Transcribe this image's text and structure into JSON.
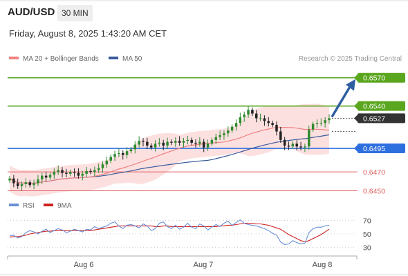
{
  "header": {
    "symbol": "AUD/USD",
    "timeframe": "30 MIN",
    "datetime": "Friday, August 8, 2025 1:43:20 AM CET"
  },
  "legend": {
    "ma20_label": "MA 20 + Bollinger Bands",
    "ma50_label": "MA 50",
    "credit": "Research © 2025 Trading Central",
    "rsi_label": "RSI",
    "rsi_ma_label": "9MA"
  },
  "colors": {
    "ma20": "#f08080",
    "ma50": "#3a5a9a",
    "band": "#fbd6d6",
    "green": "#5aa61e",
    "blue": "#2e6fe0",
    "red": "#e06060",
    "dark": "#333333",
    "candle_up": "#2f8a2f",
    "candle_down": "#222222",
    "arrow": "#2f5fa0",
    "rsi": "#6a8fd8",
    "rsi_ma": "#d02020"
  },
  "chart_data": {
    "type": "candlestick",
    "x_labels": [
      "Aug 6",
      "Aug 7",
      "Aug 8"
    ],
    "price_range": [
      0.6443,
      0.6583
    ],
    "levels": [
      {
        "value": 0.657,
        "label": "0.6570",
        "kind": "resistance",
        "color": "#5aa61e"
      },
      {
        "value": 0.654,
        "label": "0.6540",
        "kind": "resistance",
        "color": "#5aa61e"
      },
      {
        "value": 0.6527,
        "label": "0.6527",
        "kind": "last",
        "color": "#333333"
      },
      {
        "value": 0.6495,
        "label": "0.6495",
        "kind": "pivot",
        "color": "#2e6fe0"
      },
      {
        "value": 0.647,
        "label": "0.6470",
        "kind": "support",
        "color": "#e06060"
      },
      {
        "value": 0.645,
        "label": "0.6450",
        "kind": "support",
        "color": "#e06060"
      }
    ],
    "arrow_target": 0.657,
    "close": [
      0.6463,
      0.6458,
      0.6455,
      0.6457,
      0.6459,
      0.6456,
      0.6458,
      0.6462,
      0.6466,
      0.6464,
      0.6467,
      0.647,
      0.6472,
      0.6469,
      0.6468,
      0.647,
      0.6469,
      0.6466,
      0.6468,
      0.6471,
      0.647,
      0.6472,
      0.6474,
      0.6478,
      0.6482,
      0.6486,
      0.6489,
      0.649,
      0.6488,
      0.6492,
      0.6494,
      0.6499,
      0.6503,
      0.6502,
      0.6498,
      0.6496,
      0.65,
      0.6501,
      0.6498,
      0.6502,
      0.6501,
      0.6503,
      0.6501,
      0.6503,
      0.6504,
      0.6501,
      0.65,
      0.6502,
      0.6496,
      0.65,
      0.6504,
      0.6507,
      0.6509,
      0.6511,
      0.6514,
      0.6518,
      0.6522,
      0.6528,
      0.6531,
      0.6536,
      0.6532,
      0.6527,
      0.6527,
      0.6524,
      0.6522,
      0.652,
      0.6513,
      0.6504,
      0.6498,
      0.6497,
      0.65,
      0.6497,
      0.6496,
      0.6497,
      0.6515,
      0.6521,
      0.6522,
      0.6522,
      0.6525,
      0.6527
    ],
    "rsi_range": [
      20,
      80
    ],
    "rsi_levels": [
      70,
      50,
      30
    ],
    "rsi": [
      47,
      48,
      44,
      46,
      52,
      55,
      53,
      50,
      54,
      57,
      52,
      55,
      58,
      56,
      52,
      54,
      57,
      55,
      53,
      57,
      56,
      61,
      58,
      60,
      62,
      66,
      68,
      62,
      58,
      63,
      64,
      62,
      59,
      65,
      62,
      55,
      58,
      66,
      68,
      61,
      58,
      63,
      57,
      60,
      66,
      60,
      58,
      65,
      62,
      56,
      60,
      64,
      61,
      66,
      69,
      63,
      67,
      71,
      66,
      64,
      63,
      62,
      60,
      58,
      55,
      51,
      48,
      38,
      34,
      35,
      40,
      37,
      35,
      36,
      52,
      58,
      60,
      60,
      62,
      63
    ],
    "rsi_ma": [
      45,
      46,
      46,
      47,
      48,
      50,
      51,
      52,
      53,
      54,
      54,
      55,
      55,
      55,
      55,
      55,
      55,
      55,
      55,
      55,
      55,
      56,
      57,
      58,
      59,
      60,
      61,
      62,
      62,
      62,
      62,
      62,
      62,
      62,
      62,
      62,
      61,
      61,
      62,
      62,
      61,
      61,
      61,
      61,
      61,
      61,
      61,
      61,
      61,
      61,
      61,
      61,
      62,
      62,
      63,
      63,
      64,
      65,
      66,
      66,
      66,
      65,
      65,
      64,
      63,
      61,
      59,
      57,
      53,
      49,
      46,
      43,
      40,
      38,
      40,
      43,
      46,
      49,
      53,
      57
    ]
  }
}
